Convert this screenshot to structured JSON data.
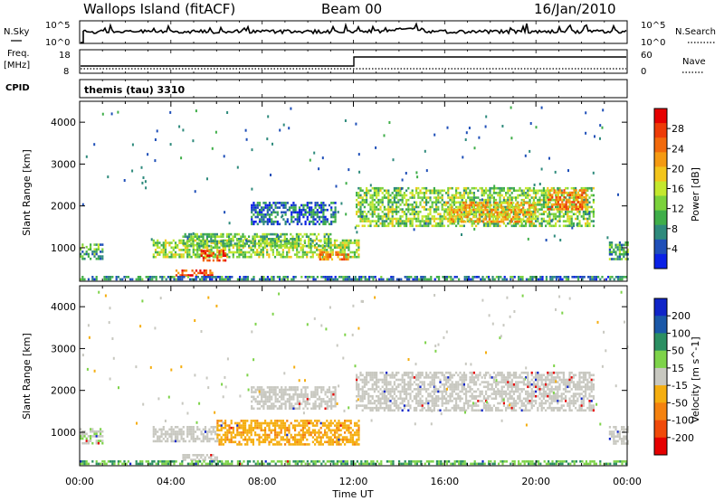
{
  "header": {
    "station": "Wallops Island (fitACF)",
    "beam": "Beam 00",
    "date": "16/Jan/2010"
  },
  "strips": {
    "nsky_label": "N.Sky",
    "nsky_ticks": [
      "10^5",
      "10^0"
    ],
    "nsearch_label": "N.Search",
    "nsearch_ticks": [
      "10^5",
      "10^0"
    ],
    "freq_label": "Freq.",
    "freq_unit": "[MHz]",
    "freq_ticks": [
      "18",
      "8"
    ],
    "nave_label": "Nave",
    "nave_ticks": [
      "60",
      "0"
    ],
    "cpid_label": "CPID",
    "cpid_value": "themis (tau) 3310"
  },
  "chart_data": [
    {
      "type": "heatmap",
      "panel": "power",
      "ylabel": "Slant Range [km]",
      "ylim": [
        200,
        4500
      ],
      "yticks": [
        1000,
        2000,
        3000,
        4000
      ],
      "xlim_hours": [
        0,
        24
      ],
      "x_tick_labels": [
        "00:00",
        "04:00",
        "08:00",
        "12:00",
        "16:00",
        "20:00",
        "00:00"
      ],
      "colorbar": {
        "label": "Power [dB]",
        "tick_labels": [
          "4",
          "8",
          "12",
          "16",
          "20",
          "24",
          "28"
        ],
        "colors": [
          "#0a21e6",
          "#1f4fb8",
          "#2e8a7c",
          "#3fae49",
          "#7bd23c",
          "#c4e82e",
          "#f3c51c",
          "#f59a12",
          "#f26a0c",
          "#ee3b07",
          "#e60000"
        ]
      },
      "regions": [
        {
          "t": [
            0.0,
            1.0
          ],
          "r": [
            750,
            1100
          ],
          "level": 0.3
        },
        {
          "t": [
            3.2,
            12.2
          ],
          "r": [
            780,
            1200
          ],
          "level": 0.45
        },
        {
          "t": [
            4.5,
            11.0
          ],
          "r": [
            1050,
            1350
          ],
          "level": 0.35
        },
        {
          "t": [
            5.3,
            6.4
          ],
          "r": [
            700,
            950
          ],
          "level": 0.9
        },
        {
          "t": [
            10.5,
            11.8
          ],
          "r": [
            720,
            920
          ],
          "level": 0.75
        },
        {
          "t": [
            4.2,
            5.8
          ],
          "r": [
            350,
            480
          ],
          "level": 0.85
        },
        {
          "t": [
            12.1,
            22.5
          ],
          "r": [
            1500,
            2450
          ],
          "level": 0.4
        },
        {
          "t": [
            16.0,
            20.0
          ],
          "r": [
            1600,
            2100
          ],
          "level": 0.65
        },
        {
          "t": [
            20.5,
            22.2
          ],
          "r": [
            1950,
            2400
          ],
          "level": 0.75
        },
        {
          "t": [
            7.5,
            11.2
          ],
          "r": [
            1550,
            2100
          ],
          "level": 0.15
        },
        {
          "t": [
            23.2,
            24.0
          ],
          "r": [
            750,
            1150
          ],
          "level": 0.3
        },
        {
          "t": [
            0.0,
            24.0
          ],
          "r": [
            230,
            330
          ],
          "level": 0.2
        }
      ]
    },
    {
      "type": "heatmap",
      "panel": "velocity",
      "ylabel": "Slant Range [km]",
      "ylim": [
        200,
        4500
      ],
      "yticks": [
        1000,
        2000,
        3000,
        4000
      ],
      "xlim_hours": [
        0,
        24
      ],
      "x_tick_labels": [
        "00:00",
        "04:00",
        "08:00",
        "12:00",
        "16:00",
        "20:00",
        "00:00"
      ],
      "xlabel": "Time UT",
      "colorbar": {
        "label": "Velocity [m s^-1]",
        "tick_labels": [
          "200",
          "100",
          "50",
          "15",
          "-15",
          "-50",
          "-100",
          "-200"
        ],
        "colors": [
          "#1025c8",
          "#1a58a8",
          "#2b8f62",
          "#7ed34a",
          "#c8c8c0",
          "#f5ae10",
          "#f5820f",
          "#f04a0a",
          "#e60000"
        ]
      },
      "regions": [
        {
          "t": [
            0.0,
            1.0
          ],
          "r": [
            750,
            1100
          ],
          "velocity": 10
        },
        {
          "t": [
            3.2,
            6.0
          ],
          "r": [
            780,
            1150
          ],
          "velocity": 0
        },
        {
          "t": [
            6.0,
            12.2
          ],
          "r": [
            700,
            1300
          ],
          "velocity": -40
        },
        {
          "t": [
            4.5,
            6.0
          ],
          "r": [
            350,
            480
          ],
          "velocity": 0
        },
        {
          "t": [
            12.1,
            22.5
          ],
          "r": [
            1500,
            2450
          ],
          "velocity": 0
        },
        {
          "t": [
            7.5,
            11.2
          ],
          "r": [
            1550,
            2100
          ],
          "velocity": 0
        },
        {
          "t": [
            23.2,
            24.0
          ],
          "r": [
            750,
            1150
          ],
          "velocity": 0
        },
        {
          "t": [
            0.0,
            24.0
          ],
          "r": [
            230,
            330
          ],
          "velocity": 30
        }
      ]
    }
  ]
}
